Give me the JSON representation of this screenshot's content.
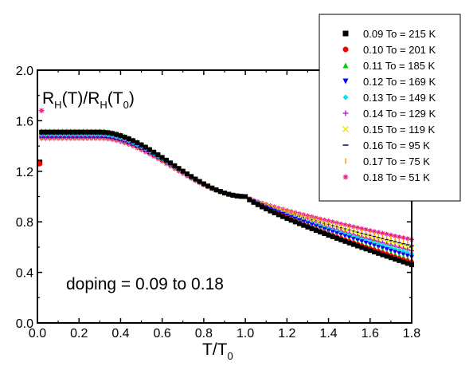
{
  "chart_data": {
    "type": "scatter",
    "xlabel": {
      "main": "T/T",
      "sub": "0"
    },
    "ylabel": {
      "p1": "R",
      "s1": "H",
      "p2": "(T)/R",
      "s2": "H",
      "p3": "(T",
      "s3": "0",
      "p4": ")"
    },
    "annotation": "doping = 0.09 to 0.18",
    "xlim": [
      0,
      1.8
    ],
    "ylim": [
      0,
      2.0
    ],
    "x_ticks": [
      "0.0",
      "0.2",
      "0.4",
      "0.6",
      "0.8",
      "1.0",
      "1.2",
      "1.4",
      "1.6",
      "1.8"
    ],
    "y_ticks": [
      "0.0",
      "0.4",
      "0.8",
      "1.2",
      "1.6",
      "2.0"
    ],
    "grid": false,
    "legend_position": "top-right",
    "series": [
      {
        "name": "0.09 To = 215 K",
        "marker": "square",
        "color": "#000000",
        "plateau": 1.51,
        "end": 0.46
      },
      {
        "name": "0.10 To = 201 K",
        "marker": "circle",
        "color": "#ff0000",
        "plateau": 1.51,
        "end": 0.48
      },
      {
        "name": "0.11 To = 185 K",
        "marker": "triangle-up",
        "color": "#00cc00",
        "plateau": 1.52,
        "end": 0.5
      },
      {
        "name": "0.12 To = 169 K",
        "marker": "triangle-down",
        "color": "#0000ff",
        "plateau": 1.5,
        "end": 0.52
      },
      {
        "name": "0.13 To = 149 K",
        "marker": "diamond",
        "color": "#00e5e5",
        "plateau": 1.49,
        "end": 0.55
      },
      {
        "name": "0.14 To = 129 K",
        "marker": "plus",
        "color": "#cc00cc",
        "plateau": 1.48,
        "end": 0.57
      },
      {
        "name": "0.15 To = 119 K",
        "marker": "cross",
        "color": "#e5e500",
        "plateau": 1.5,
        "end": 0.59
      },
      {
        "name": "0.16 To =  95 K",
        "marker": "hline",
        "color": "#000080",
        "plateau": 1.47,
        "end": 0.61
      },
      {
        "name": "0.17 To =  75 K",
        "marker": "vline",
        "color": "#ff9900",
        "plateau": 1.47,
        "end": 0.63
      },
      {
        "name": "0.18 To =  51 K",
        "marker": "asterisk",
        "color": "#e0208a",
        "plateau": 1.46,
        "end": 0.66
      }
    ],
    "outliers": [
      {
        "series": 0,
        "x": 0.01,
        "y": 1.27
      },
      {
        "series": 1,
        "x": 0.01,
        "y": 1.26
      },
      {
        "series": 9,
        "x": 0.02,
        "y": 1.68
      }
    ]
  }
}
